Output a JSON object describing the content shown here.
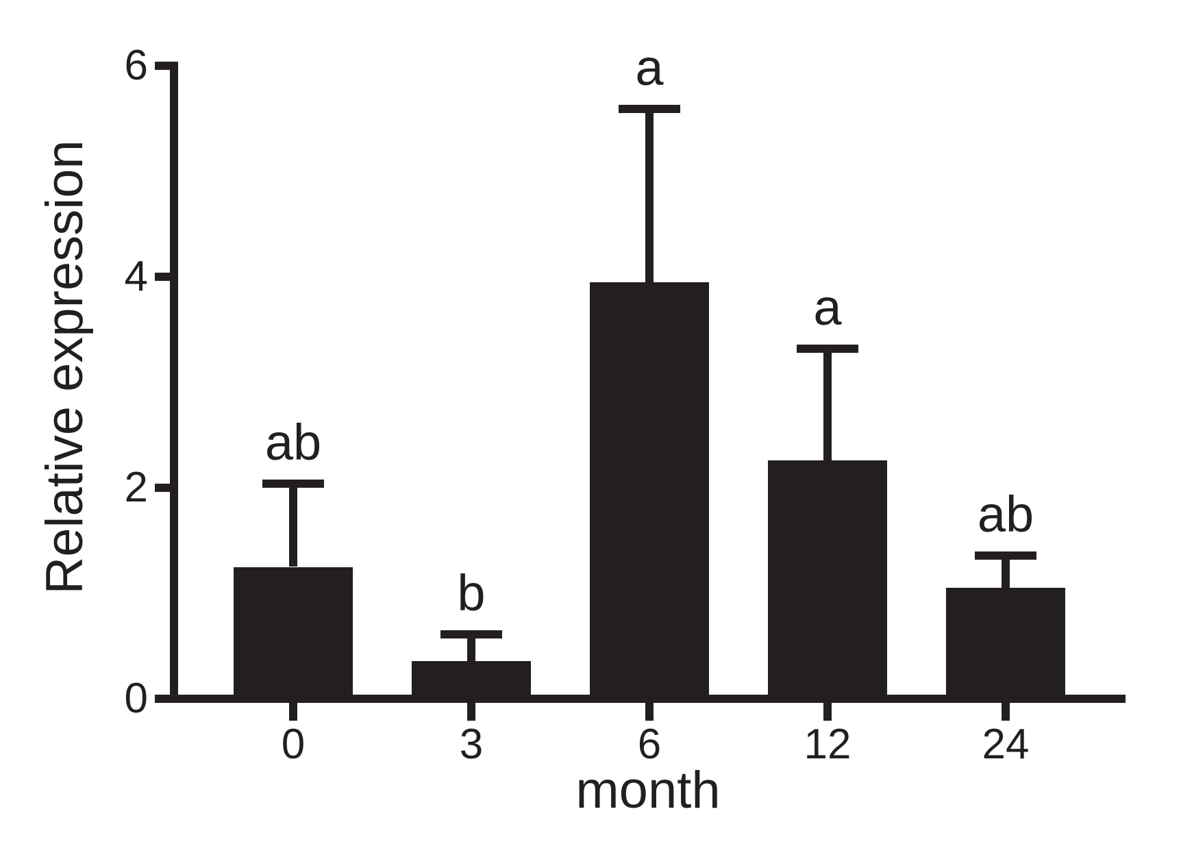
{
  "chart_data": {
    "type": "bar",
    "title": "",
    "xlabel": "month",
    "ylabel": "Relative expression",
    "categories": [
      "0",
      "3",
      "6",
      "12",
      "24"
    ],
    "values": [
      1.25,
      0.36,
      3.95,
      2.26,
      1.05
    ],
    "errors": [
      0.79,
      0.25,
      1.64,
      1.06,
      0.31
    ],
    "error_bar_style": "upper SD whisker with cap",
    "significance_labels": [
      "ab",
      "b",
      "a",
      "a",
      "ab"
    ],
    "yticks": [
      0,
      2,
      4,
      6
    ],
    "ylim": [
      0,
      6
    ],
    "grid": false,
    "legend": "none",
    "bar_color": "#231f20",
    "axis_color": "#231f20",
    "text_color": "#231f20",
    "background_color": "#ffffff"
  }
}
